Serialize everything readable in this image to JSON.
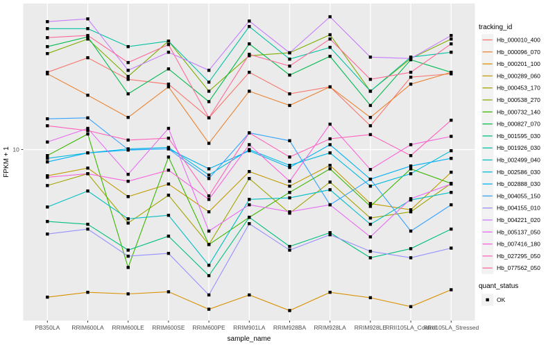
{
  "chart_data": {
    "type": "line",
    "xlabel": "sample_name",
    "ylabel": "FPKM + 1",
    "y_scale": "log10",
    "y_tick_labels": [
      "10"
    ],
    "y_tick_values": [
      10
    ],
    "grid": "major-only",
    "legend_position": "right",
    "legend_titles": {
      "series": "tracking_id",
      "status": "quant_status"
    },
    "status_items": [
      {
        "label": "OK",
        "marker": "black-square"
      }
    ],
    "colors": {
      "panel_background": "#EBEBEB",
      "gridline": "#FFFFFF",
      "marker": "#000000",
      "legend_key_background": "#F2F2F2",
      "axis_text": "#4D4D4D",
      "axis_title": "#000000",
      "tick_mark": "#333333"
    },
    "x_categories": [
      "PB350LA",
      "RRIM600LA",
      "RRIM600LE",
      "RRIM600SE",
      "RRIM600PE",
      "RRIM901LA",
      "RRIM928BA",
      "RRIM928LA",
      "RRIM928LE",
      "RRII105LA_Control",
      "RRII105LA_Stressed"
    ],
    "series": [
      {
        "name": "Hb_000010_400",
        "color": "#F8766D",
        "values": [
          29.1,
          35.6,
          26.4,
          24.7,
          15.5,
          29.1,
          21.6,
          23.8,
          13.9,
          27.2,
          28.5
        ]
      },
      {
        "name": "Hb_000096_070",
        "color": "#EA8331",
        "values": [
          28.5,
          21.2,
          15.6,
          23.8,
          10.9,
          22.4,
          18.4,
          23.8,
          15.6,
          24.7,
          29.1
        ]
      },
      {
        "name": "Hb_000201_100",
        "color": "#D89000",
        "values": [
          1.3,
          1.39,
          1.36,
          1.4,
          1.1,
          1.34,
          1.08,
          1.39,
          1.29,
          1.14,
          1.44
        ]
      },
      {
        "name": "Hb_000289_060",
        "color": "#C09B00",
        "values": [
          6.96,
          7.74,
          5.22,
          6.21,
          4.23,
          7.38,
          6.03,
          8.04,
          4.74,
          4.35,
          7.31
        ]
      },
      {
        "name": "Hb_000453_170",
        "color": "#A3A500",
        "values": [
          6.08,
          7.16,
          3.62,
          5.32,
          2.69,
          6.7,
          4.15,
          6.38,
          3.88,
          4.23,
          6.26
        ]
      },
      {
        "name": "Hb_000538_270",
        "color": "#7CAE00",
        "values": [
          37.7,
          46.1,
          27.5,
          44.8,
          22.4,
          36.6,
          38.1,
          48.9,
          22.4,
          35.2,
          46.1
        ]
      },
      {
        "name": "Hb_000732_140",
        "color": "#39B600",
        "values": [
          9.2,
          12.4,
          1.96,
          9.02,
          2.69,
          3.92,
          5.53,
          7.66,
          4.56,
          7.66,
          6.26
        ]
      },
      {
        "name": "Hb_000827_070",
        "color": "#00BB4E",
        "values": [
          41.5,
          47.5,
          21.6,
          30.5,
          19.4,
          43.1,
          28.0,
          36.3,
          18.4,
          34.6,
          29.1
        ]
      },
      {
        "name": "Hb_001595_030",
        "color": "#00BF7D",
        "values": [
          3.7,
          3.56,
          2.49,
          3.02,
          1.75,
          3.92,
          2.62,
          3.17,
          2.24,
          2.54,
          3.33
        ]
      },
      {
        "name": "Hb_001926_030",
        "color": "#00C1A3",
        "values": [
          53.2,
          53.2,
          41.5,
          44.8,
          25.4,
          54.8,
          34.9,
          41.1,
          22.4,
          35.9,
          38.4
        ]
      },
      {
        "name": "Hb_002499_040",
        "color": "#00BFC4",
        "values": [
          4.52,
          5.64,
          3.84,
          4.03,
          2.02,
          5.02,
          5.13,
          5.74,
          3.56,
          4.98,
          5.53
        ]
      },
      {
        "name": "Hb_002586_030",
        "color": "#00BAE0",
        "values": [
          8.85,
          9.55,
          10.1,
          10.3,
          7.03,
          10.0,
          8.04,
          9.55,
          6.03,
          7.16,
          9.84
        ]
      },
      {
        "name": "Hb_002888_030",
        "color": "#00B0F6",
        "values": [
          8.43,
          9.55,
          9.93,
          10.1,
          7.66,
          9.84,
          7.81,
          10.7,
          6.64,
          7.97,
          8.85
        ]
      },
      {
        "name": "Hb_004055_150",
        "color": "#35A2FF",
        "values": [
          15.3,
          15.5,
          10.0,
          10.1,
          6.7,
          12.6,
          11.3,
          4.66,
          6.64,
          3.24,
          4.66
        ]
      },
      {
        "name": "Hb_004155_010",
        "color": "#9590FF",
        "values": [
          3.11,
          3.33,
          2.29,
          2.38,
          1.34,
          3.59,
          2.49,
          3.08,
          2.45,
          2.24,
          2.56
        ]
      },
      {
        "name": "Hb_004221_020",
        "color": "#C77CFF",
        "values": [
          58.6,
          60.9,
          29.9,
          38.4,
          29.9,
          59.1,
          38.1,
          62.7,
          35.9,
          35.2,
          48.4
        ]
      },
      {
        "name": "Hb_005137_050",
        "color": "#E76BF3",
        "values": [
          11.1,
          13.4,
          7.1,
          13.4,
          3.24,
          4.66,
          4.23,
          4.66,
          2.99,
          5.07,
          6.21
        ]
      },
      {
        "name": "Hb_007416_180",
        "color": "#FA62DB",
        "values": [
          6.82,
          7.16,
          6.45,
          7.52,
          5.02,
          10.7,
          6.45,
          14.2,
          7.59,
          10.7,
          12.0
        ]
      },
      {
        "name": "Hb_027295_050",
        "color": "#FF62BC",
        "values": [
          13.9,
          13.0,
          11.4,
          11.7,
          5.27,
          12.6,
          9.02,
          11.6,
          12.3,
          9.2,
          15.0
        ]
      },
      {
        "name": "Hb_077562_050",
        "color": "#FF6A98",
        "values": [
          47.0,
          48.4,
          33.3,
          42.7,
          15.5,
          37.3,
          31.7,
          46.1,
          26.4,
          29.1,
          43.1
        ]
      }
    ]
  }
}
